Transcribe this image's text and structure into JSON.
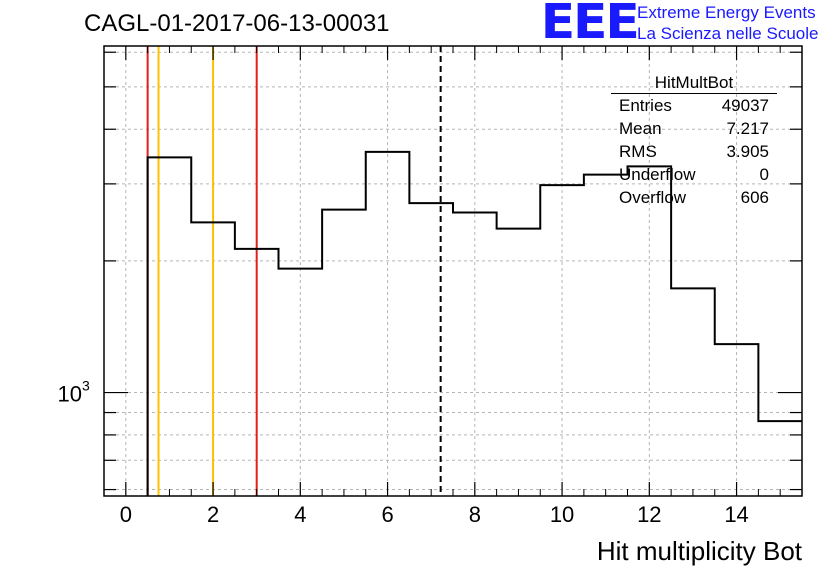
{
  "title": "CAGL-01-2017-06-13-00031",
  "logo": {
    "mark": "EEE",
    "line1": "Extreme Energy Events",
    "line2": "La Scienza nelle Scuole",
    "color": "#1a1aff"
  },
  "stats": {
    "name": "HitMultBot",
    "rows": [
      {
        "label": "Entries",
        "value": "49037"
      },
      {
        "label": "Mean",
        "value": "7.217"
      },
      {
        "label": "RMS",
        "value": "3.905"
      },
      {
        "label": "Underflow",
        "value": "0"
      },
      {
        "label": "Overflow",
        "value": "606"
      }
    ]
  },
  "chart_data": {
    "type": "bar",
    "histogram": "step",
    "xlabel": "Hit multiplicity Bot",
    "ylabel": "",
    "x_range": [
      -0.5,
      15.5
    ],
    "y_scale": "log",
    "y_range": [
      580,
      6200
    ],
    "x_ticks": [
      0,
      2,
      4,
      6,
      8,
      10,
      12,
      14
    ],
    "y_tick_label": {
      "base": "10",
      "exp": "3",
      "value": 1000
    },
    "grid": true,
    "bin_edges": [
      0.5,
      1.5,
      2.5,
      3.5,
      4.5,
      5.5,
      6.5,
      7.5,
      8.5,
      9.5,
      10.5,
      11.5,
      12.5,
      13.5,
      14.5,
      15.5
    ],
    "values": [
      3450,
      2450,
      2130,
      1920,
      2620,
      3550,
      2710,
      2580,
      2370,
      2980,
      3150,
      3290,
      1730,
      1290,
      860
    ],
    "vertical_lines": [
      {
        "x": 0.5,
        "color": "#e0201a",
        "style": "solid"
      },
      {
        "x": 0.75,
        "color": "#ffc000",
        "style": "solid"
      },
      {
        "x": 2.0,
        "color": "#ffc000",
        "style": "solid"
      },
      {
        "x": 3.0,
        "color": "#e0201a",
        "style": "solid"
      },
      {
        "x": 7.217,
        "color": "#000000",
        "style": "dashed"
      }
    ]
  }
}
